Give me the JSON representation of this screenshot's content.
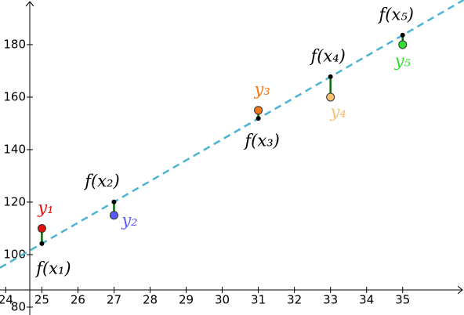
{
  "chart_data": {
    "type": "scatter",
    "x": [
      25,
      27,
      31,
      33,
      35
    ],
    "series": [
      {
        "name": "y",
        "point_labels": [
          "y₁",
          "y₂",
          "y₃",
          "y₄",
          "y₅"
        ],
        "colors": [
          "#e41010",
          "#5a5aff",
          "#f07818",
          "#f8c070",
          "#30e030"
        ],
        "values": [
          110,
          115,
          155,
          160,
          180
        ]
      },
      {
        "name": "f(x)",
        "point_labels": [
          "f(x₁)",
          "f(x₂)",
          "f(x₃)",
          "f(x₄)",
          "f(x₅)"
        ],
        "color": "#000000",
        "line_color": "#4ab4d4",
        "values": [
          104.2,
          120.1,
          151.9,
          167.8,
          183.6
        ]
      }
    ],
    "residual_color": "#0a6a0a",
    "xlim": [
      23.84,
      36.7
    ],
    "ylim": [
      77,
      197
    ],
    "xticks": [
      24,
      25,
      26,
      27,
      28,
      29,
      30,
      31,
      32,
      33,
      34,
      35
    ],
    "yticks": [
      80,
      100,
      120,
      140,
      160,
      180
    ]
  }
}
